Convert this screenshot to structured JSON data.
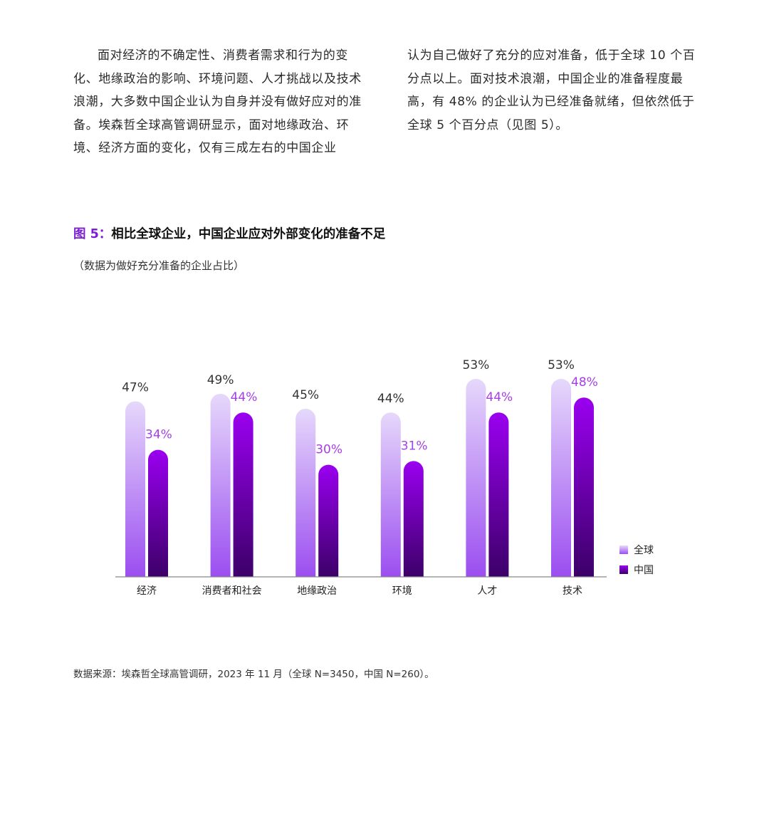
{
  "body_text": {
    "left": [
      "面对经济的不确定性、消费者需求和行为的变化、地缘政治的影响、环境问题、人才挑战以及技术浪潮，大多数中国企业认为自身并没有做好应对的准备。埃森哲全球高管调研显示，面对地缘政治、环境、经济方面的变化，仅有三成左右的中国企业"
    ],
    "right": [
      "认为自己做好了充分的应对准备，低于全球 10 个百分点以上。面对技术浪潮，中国企业的准备程度最高，有 48% 的企业认为已经准备就绪，但依然低于全球 5 个百分点（见图 5）。"
    ]
  },
  "figure": {
    "number": "图 5：",
    "title": "相比全球企业，中国企业应对外部变化的准备不足",
    "subtitle": "（数据为做好充分准备的企业占比）",
    "source": "数据来源：埃森哲全球高管调研，2023 年 11 月（全球 N=3450，中国 N=260）。"
  },
  "chart_data": {
    "type": "bar",
    "categories": [
      "经济",
      "消费者和社会",
      "地缘政治",
      "环境",
      "人才",
      "技术"
    ],
    "series": [
      {
        "name": "全球",
        "values": [
          47,
          49,
          45,
          44,
          53,
          53
        ],
        "labels": [
          "47%",
          "49%",
          "45%",
          "44%",
          "53%",
          "53%"
        ],
        "color": "#b98af5"
      },
      {
        "name": "中国",
        "values": [
          34,
          44,
          30,
          31,
          44,
          48
        ],
        "labels": [
          "34%",
          "44%",
          "30%",
          "31%",
          "44%",
          "48%"
        ],
        "color": "#8a00e6"
      }
    ],
    "ylim": [
      0,
      53
    ],
    "grid": false,
    "legend_position": "right"
  },
  "colors": {
    "accent": "#7b1fd6",
    "china_label": "#a53ee6",
    "global_label": "#333333",
    "axis": "#888888"
  }
}
